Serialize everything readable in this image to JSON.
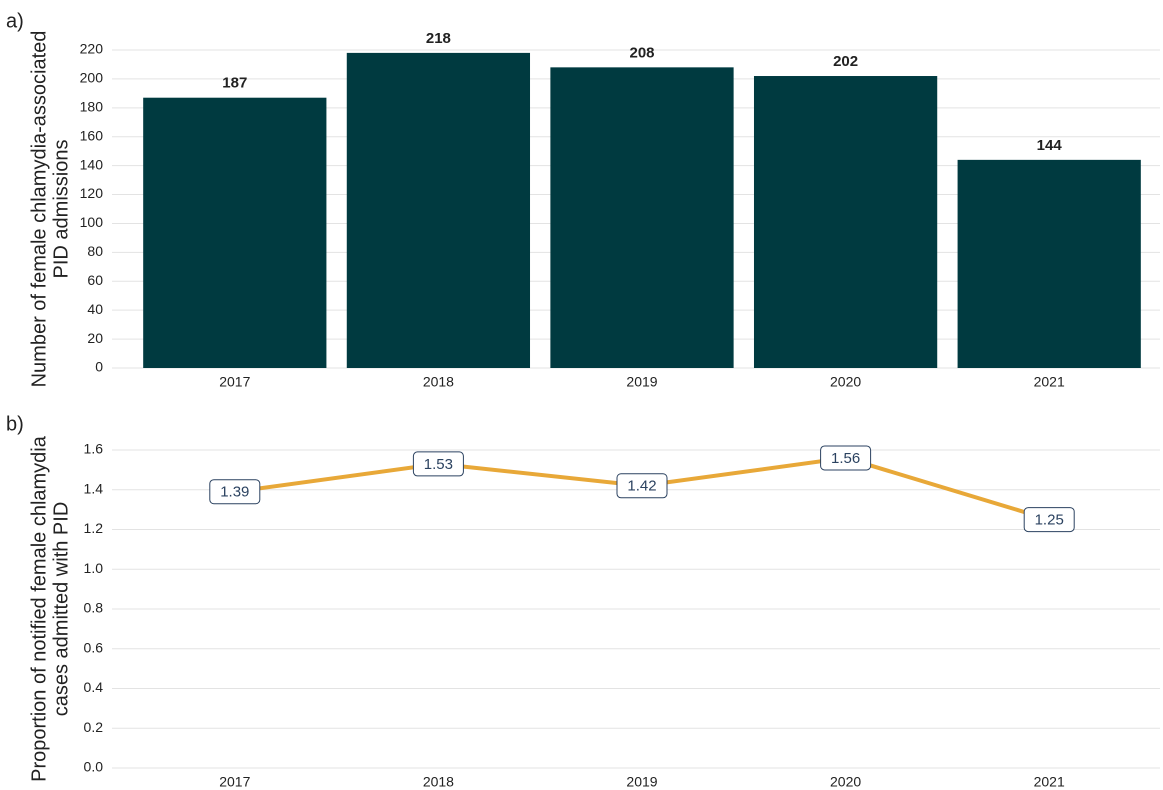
{
  "chart_data": [
    {
      "type": "bar",
      "panel_label": "a)",
      "ylabel": [
        "Number of female chlamydia-associated",
        "PID admissions"
      ],
      "categories": [
        "2017",
        "2018",
        "2019",
        "2020",
        "2021"
      ],
      "values": [
        187,
        218,
        208,
        202,
        144
      ],
      "color": "#003a40",
      "ylim": [
        0,
        220
      ],
      "yticks": [
        0,
        20,
        40,
        60,
        80,
        100,
        120,
        140,
        160,
        180,
        200,
        220
      ],
      "grid": true
    },
    {
      "type": "line",
      "panel_label": "b)",
      "ylabel": [
        "Proportion of notified female chlamydia",
        "cases admitted with PID"
      ],
      "categories": [
        "2017",
        "2018",
        "2019",
        "2020",
        "2021"
      ],
      "values": [
        1.39,
        1.53,
        1.42,
        1.56,
        1.25
      ],
      "color": "#e8a838",
      "ylim": [
        0,
        1.6
      ],
      "yticks": [
        {
          "value": 0,
          "label": "0.0"
        },
        0.2,
        0.4,
        0.6,
        0.8,
        {
          "value": 1,
          "label": "1.0"
        },
        1.2,
        1.4,
        1.6
      ],
      "grid": true
    }
  ]
}
